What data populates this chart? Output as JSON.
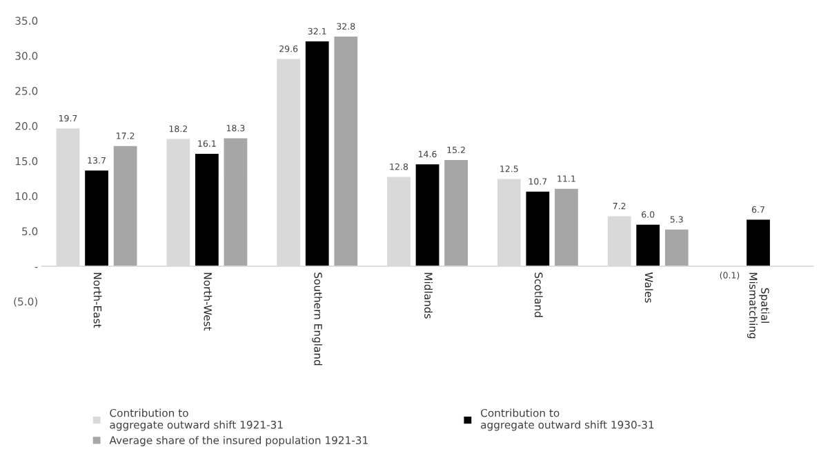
{
  "chart_data": {
    "type": "bar",
    "categories": [
      "North-East",
      "North-West",
      "Southern England",
      "Midlands",
      "Scotland",
      "Wales",
      "Spatial\nMismatching"
    ],
    "series": [
      {
        "name": "Contribution to\naggregate outward shift 1921-31",
        "color": "#d9d9d9",
        "values": [
          19.7,
          18.2,
          29.6,
          12.8,
          12.5,
          7.2,
          -0.1
        ],
        "value_labels": [
          "19.7",
          "18.2",
          "29.6",
          "12.8",
          "12.5",
          "7.2",
          "(0.1)"
        ]
      },
      {
        "name": "Contribution to\naggregate outward shift 1930-31",
        "color": "#000000",
        "values": [
          13.7,
          16.1,
          32.1,
          14.6,
          10.7,
          6.0,
          6.7
        ],
        "value_labels": [
          "13.7",
          "16.1",
          "32.1",
          "14.6",
          "10.7",
          "6.0",
          "6.7"
        ]
      },
      {
        "name": "Average share of the insured population 1921-31",
        "color": "#a6a6a6",
        "values": [
          17.2,
          18.3,
          32.8,
          15.2,
          11.1,
          5.3,
          null
        ],
        "value_labels": [
          "17.2",
          "18.3",
          "32.8",
          "15.2",
          "11.1",
          "5.3",
          null
        ]
      }
    ],
    "ylim": [
      -5,
      35
    ],
    "yticks": [
      {
        "value": -5,
        "label": "(5.0)"
      },
      {
        "value": 0,
        "label": "-"
      },
      {
        "value": 5,
        "label": "5.0"
      },
      {
        "value": 10,
        "label": "10.0"
      },
      {
        "value": 15,
        "label": "15.0"
      },
      {
        "value": 20,
        "label": "20.0"
      },
      {
        "value": 25,
        "label": "25.0"
      },
      {
        "value": 30,
        "label": "30.0"
      },
      {
        "value": 35,
        "label": "35.0"
      }
    ],
    "grid": false,
    "legend": "bottom"
  }
}
